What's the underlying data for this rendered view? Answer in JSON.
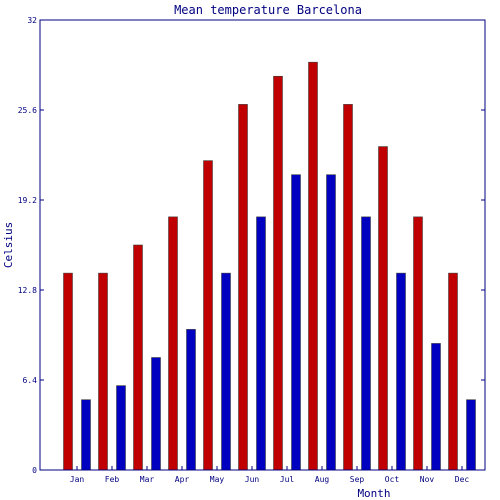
{
  "chart_data": {
    "type": "bar",
    "title": "Mean temperature Barcelona",
    "xlabel": "Month",
    "ylabel": "Celsius",
    "ylim": [
      0,
      32
    ],
    "yticks": [
      "0",
      "6.4",
      "12.8",
      "19.2",
      "25.6",
      "32"
    ],
    "grid": false,
    "categories": [
      "Jan",
      "Feb",
      "Mar",
      "Apr",
      "May",
      "Jun",
      "Jul",
      "Aug",
      "Sep",
      "Oct",
      "Nov",
      "Dec"
    ],
    "series": [
      {
        "color": "#c00000",
        "values": [
          14,
          14,
          16,
          18,
          22,
          26,
          28,
          29,
          26,
          23,
          18,
          14
        ]
      },
      {
        "color": "#0000c0",
        "values": [
          5,
          6,
          8,
          10,
          14,
          18,
          21,
          21,
          18,
          14,
          9,
          5
        ]
      }
    ]
  }
}
